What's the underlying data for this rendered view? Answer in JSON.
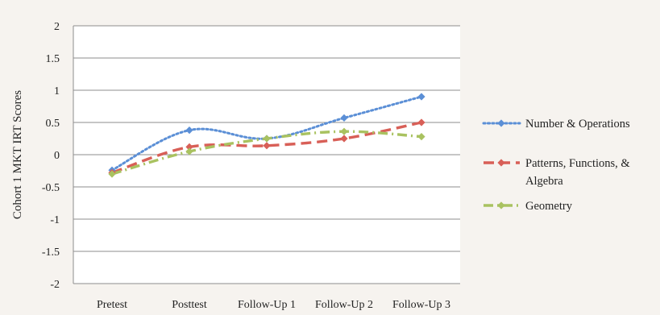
{
  "chart_data": {
    "type": "line",
    "title": "",
    "xlabel": "",
    "ylabel": "Cohort 1 MKT IRT Scores",
    "categories": [
      "Pretest",
      "Posttest",
      "Follow-Up 1",
      "Follow-Up 2",
      "Follow-Up 3"
    ],
    "ylim": [
      -2,
      2
    ],
    "yticks": [
      2,
      1.5,
      1,
      0.5,
      0,
      -0.5,
      -1,
      -1.5,
      -2
    ],
    "ytick_labels": [
      "2",
      "1.5",
      "1",
      "0.5",
      "0",
      "-0.5",
      "-1",
      "-1.5",
      "-2"
    ],
    "grid": true,
    "legend_position": "right",
    "series": [
      {
        "name": "Number & Operations",
        "legend_lines": [
          "Number & Operations"
        ],
        "values": [
          -0.24,
          0.38,
          0.25,
          0.57,
          0.9
        ],
        "color": "#5b8fd6",
        "dash": "dotted",
        "marker": "diamond"
      },
      {
        "name": "Patterns, Functions, & Algebra",
        "legend_lines": [
          "Patterns, Functions, &",
          "Algebra"
        ],
        "values": [
          -0.28,
          0.12,
          0.14,
          0.25,
          0.5
        ],
        "color": "#d85f57",
        "dash": "dashed",
        "marker": "diamond"
      },
      {
        "name": "Geometry",
        "legend_lines": [
          "Geometry"
        ],
        "values": [
          -0.3,
          0.05,
          0.25,
          0.36,
          0.28
        ],
        "color": "#a9c260",
        "dash": "dashdot",
        "marker": "diamond"
      }
    ]
  }
}
